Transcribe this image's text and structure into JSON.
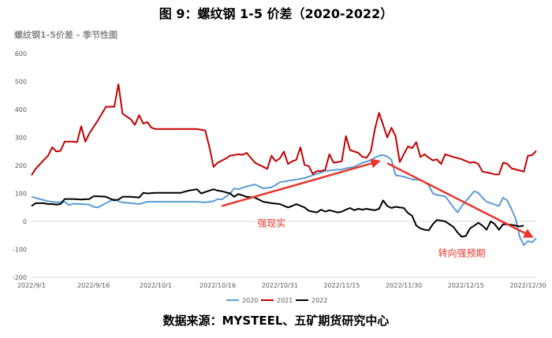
{
  "figure_title": "图 9：螺纹钢 1-5 价差（2020-2022）",
  "source": "数据来源：MYSTEEL、五矿期货研究中心",
  "colors": {
    "series_2020": "#5b9bd5",
    "series_2021": "#c00000",
    "series_2022": "#000000",
    "arrow": "#e8362c"
  },
  "chart_data": {
    "type": "line",
    "title": "螺纹钢1-5价差 - 季节性图",
    "xlabel": "",
    "ylabel": "",
    "ylim": [
      -200,
      600
    ],
    "yticks": [
      600,
      500,
      400,
      300,
      200,
      100,
      0,
      -100,
      -200
    ],
    "xlim": [
      0,
      122
    ],
    "xticks": [
      {
        "label": "2022/9/1",
        "x": 0
      },
      {
        "label": "2022/9/16",
        "x": 15
      },
      {
        "label": "2022/10/1",
        "x": 30
      },
      {
        "label": "2022/10/16",
        "x": 45
      },
      {
        "label": "2022/10/31",
        "x": 60
      },
      {
        "label": "2022/11/15",
        "x": 75
      },
      {
        "label": "2022/11/30",
        "x": 90
      },
      {
        "label": "2022/12/15",
        "x": 105
      },
      {
        "label": "2022/12/30",
        "x": 120
      }
    ],
    "grid": false,
    "legend_position": "bottom",
    "series": [
      {
        "name": "2020",
        "color": "#5b9bd5",
        "points": [
          [
            0,
            88
          ],
          [
            2,
            80
          ],
          [
            4,
            72
          ],
          [
            6,
            68
          ],
          [
            8,
            70
          ],
          [
            9,
            58
          ],
          [
            10,
            63
          ],
          [
            12,
            62
          ],
          [
            14,
            60
          ],
          [
            15,
            52
          ],
          [
            16,
            50
          ],
          [
            18,
            65
          ],
          [
            20,
            80
          ],
          [
            21,
            72
          ],
          [
            22,
            68
          ],
          [
            24,
            65
          ],
          [
            26,
            62
          ],
          [
            28,
            70
          ],
          [
            30,
            70
          ],
          [
            32,
            70
          ],
          [
            34,
            70
          ],
          [
            36,
            70
          ],
          [
            38,
            70
          ],
          [
            40,
            70
          ],
          [
            42,
            68
          ],
          [
            44,
            72
          ],
          [
            45,
            80
          ],
          [
            46,
            78
          ],
          [
            48,
            100
          ],
          [
            49,
            118
          ],
          [
            50,
            115
          ],
          [
            52,
            125
          ],
          [
            54,
            132
          ],
          [
            56,
            118
          ],
          [
            58,
            122
          ],
          [
            59,
            130
          ],
          [
            60,
            140
          ],
          [
            62,
            145
          ],
          [
            64,
            150
          ],
          [
            66,
            155
          ],
          [
            68,
            165
          ],
          [
            70,
            175
          ],
          [
            71,
            180
          ],
          [
            72,
            182
          ],
          [
            74,
            185
          ],
          [
            75,
            185
          ],
          [
            76,
            190
          ],
          [
            78,
            195
          ],
          [
            80,
            210
          ],
          [
            82,
            218
          ],
          [
            83,
            228
          ],
          [
            84,
            235
          ],
          [
            85,
            237
          ],
          [
            86,
            232
          ],
          [
            87,
            220
          ],
          [
            88,
            165
          ],
          [
            90,
            160
          ],
          [
            92,
            150
          ],
          [
            94,
            148
          ],
          [
            95,
            140
          ],
          [
            96,
            130
          ],
          [
            97,
            100
          ],
          [
            98,
            95
          ],
          [
            100,
            90
          ],
          [
            101,
            70
          ],
          [
            102,
            50
          ],
          [
            103,
            32
          ],
          [
            104,
            55
          ],
          [
            106,
            90
          ],
          [
            107,
            108
          ],
          [
            108,
            102
          ],
          [
            109,
            85
          ],
          [
            110,
            70
          ],
          [
            112,
            60
          ],
          [
            113,
            55
          ],
          [
            114,
            85
          ],
          [
            115,
            75
          ],
          [
            116,
            45
          ],
          [
            117,
            10
          ],
          [
            118,
            -55
          ],
          [
            119,
            -85
          ],
          [
            120,
            -70
          ],
          [
            121,
            -75
          ],
          [
            122,
            -60
          ]
        ]
      },
      {
        "name": "2021",
        "color": "#c00000",
        "points": [
          [
            0,
            165
          ],
          [
            1,
            188
          ],
          [
            3,
            220
          ],
          [
            4,
            235
          ],
          [
            5,
            265
          ],
          [
            6,
            250
          ],
          [
            7,
            252
          ],
          [
            8,
            285
          ],
          [
            10,
            285
          ],
          [
            11,
            283
          ],
          [
            12,
            340
          ],
          [
            13,
            285
          ],
          [
            14,
            315
          ],
          [
            16,
            360
          ],
          [
            18,
            410
          ],
          [
            20,
            410
          ],
          [
            21,
            490
          ],
          [
            22,
            385
          ],
          [
            24,
            365
          ],
          [
            25,
            345
          ],
          [
            26,
            380
          ],
          [
            27,
            350
          ],
          [
            28,
            355
          ],
          [
            29,
            335
          ],
          [
            30,
            330
          ],
          [
            35,
            330
          ],
          [
            40,
            330
          ],
          [
            42,
            325
          ],
          [
            43,
            265
          ],
          [
            44,
            195
          ],
          [
            45,
            210
          ],
          [
            47,
            225
          ],
          [
            48,
            235
          ],
          [
            50,
            240
          ],
          [
            51,
            238
          ],
          [
            52,
            245
          ],
          [
            54,
            210
          ],
          [
            56,
            195
          ],
          [
            57,
            188
          ],
          [
            58,
            235
          ],
          [
            59,
            215
          ],
          [
            60,
            225
          ],
          [
            61,
            250
          ],
          [
            62,
            205
          ],
          [
            63,
            215
          ],
          [
            64,
            220
          ],
          [
            65,
            265
          ],
          [
            66,
            202
          ],
          [
            67,
            198
          ],
          [
            68,
            170
          ],
          [
            69,
            180
          ],
          [
            70,
            180
          ],
          [
            71,
            185
          ],
          [
            72,
            240
          ],
          [
            73,
            210
          ],
          [
            74,
            212
          ],
          [
            75,
            215
          ],
          [
            76,
            305
          ],
          [
            77,
            255
          ],
          [
            78,
            250
          ],
          [
            79,
            245
          ],
          [
            80,
            230
          ],
          [
            81,
            228
          ],
          [
            82,
            250
          ],
          [
            83,
            330
          ],
          [
            84,
            388
          ],
          [
            85,
            345
          ],
          [
            86,
            300
          ],
          [
            87,
            335
          ],
          [
            88,
            305
          ],
          [
            89,
            212
          ],
          [
            90,
            240
          ],
          [
            91,
            268
          ],
          [
            92,
            262
          ],
          [
            93,
            283
          ],
          [
            94,
            230
          ],
          [
            95,
            240
          ],
          [
            96,
            228
          ],
          [
            97,
            218
          ],
          [
            98,
            222
          ],
          [
            99,
            205
          ],
          [
            100,
            240
          ],
          [
            102,
            230
          ],
          [
            104,
            222
          ],
          [
            106,
            210
          ],
          [
            107,
            212
          ],
          [
            108,
            205
          ],
          [
            109,
            178
          ],
          [
            111,
            172
          ],
          [
            112,
            168
          ],
          [
            113,
            168
          ],
          [
            114,
            210
          ],
          [
            115,
            206
          ],
          [
            116,
            190
          ],
          [
            118,
            182
          ],
          [
            119,
            178
          ],
          [
            120,
            235
          ],
          [
            121,
            237
          ],
          [
            122,
            252
          ]
        ]
      },
      {
        "name": "2022",
        "color": "#000000",
        "points": [
          [
            0,
            55
          ],
          [
            1,
            65
          ],
          [
            3,
            65
          ],
          [
            4,
            62
          ],
          [
            5,
            62
          ],
          [
            6,
            60
          ],
          [
            7,
            62
          ],
          [
            8,
            80
          ],
          [
            10,
            80
          ],
          [
            12,
            78
          ],
          [
            14,
            80
          ],
          [
            15,
            90
          ],
          [
            16,
            90
          ],
          [
            18,
            88
          ],
          [
            20,
            75
          ],
          [
            21,
            78
          ],
          [
            22,
            88
          ],
          [
            24,
            88
          ],
          [
            26,
            85
          ],
          [
            27,
            102
          ],
          [
            28,
            100
          ],
          [
            30,
            102
          ],
          [
            32,
            102
          ],
          [
            34,
            102
          ],
          [
            36,
            102
          ],
          [
            38,
            110
          ],
          [
            40,
            115
          ],
          [
            41,
            100
          ],
          [
            42,
            105
          ],
          [
            44,
            115
          ],
          [
            45,
            110
          ],
          [
            46,
            108
          ],
          [
            48,
            100
          ],
          [
            49,
            88
          ],
          [
            50,
            98
          ],
          [
            52,
            88
          ],
          [
            54,
            85
          ],
          [
            56,
            70
          ],
          [
            58,
            65
          ],
          [
            60,
            62
          ],
          [
            62,
            50
          ],
          [
            63,
            55
          ],
          [
            64,
            62
          ],
          [
            66,
            50
          ],
          [
            67,
            38
          ],
          [
            68,
            35
          ],
          [
            69,
            32
          ],
          [
            70,
            42
          ],
          [
            71,
            35
          ],
          [
            72,
            40
          ],
          [
            74,
            32
          ],
          [
            75,
            35
          ],
          [
            76,
            42
          ],
          [
            77,
            48
          ],
          [
            78,
            40
          ],
          [
            79,
            45
          ],
          [
            80,
            42
          ],
          [
            81,
            45
          ],
          [
            82,
            42
          ],
          [
            83,
            40
          ],
          [
            84,
            45
          ],
          [
            85,
            75
          ],
          [
            86,
            55
          ],
          [
            87,
            48
          ],
          [
            88,
            52
          ],
          [
            90,
            48
          ],
          [
            91,
            30
          ],
          [
            92,
            20
          ],
          [
            93,
            -15
          ],
          [
            94,
            -25
          ],
          [
            95,
            -30
          ],
          [
            96,
            -32
          ],
          [
            97,
            -10
          ],
          [
            98,
            5
          ],
          [
            100,
            0
          ],
          [
            102,
            -20
          ],
          [
            103,
            -40
          ],
          [
            104,
            -55
          ],
          [
            105,
            -52
          ],
          [
            106,
            -25
          ],
          [
            108,
            -5
          ],
          [
            109,
            -15
          ],
          [
            110,
            -30
          ],
          [
            111,
            0
          ],
          [
            112,
            -10
          ],
          [
            113,
            -30
          ],
          [
            114,
            -10
          ],
          [
            116,
            -12
          ],
          [
            117,
            -15
          ],
          [
            118,
            -18
          ],
          [
            119,
            -15
          ]
        ]
      }
    ],
    "annotations": [
      {
        "text": "强现实",
        "arrow_from": [
          46,
          55
        ],
        "arrow_to": [
          84,
          215
        ],
        "text_at": [
          58,
          -18
        ]
      },
      {
        "text": "转向强预期",
        "arrow_from": [
          86,
          208
        ],
        "arrow_to": [
          121,
          -55
        ],
        "text_at": [
          104,
          -125
        ]
      }
    ]
  }
}
